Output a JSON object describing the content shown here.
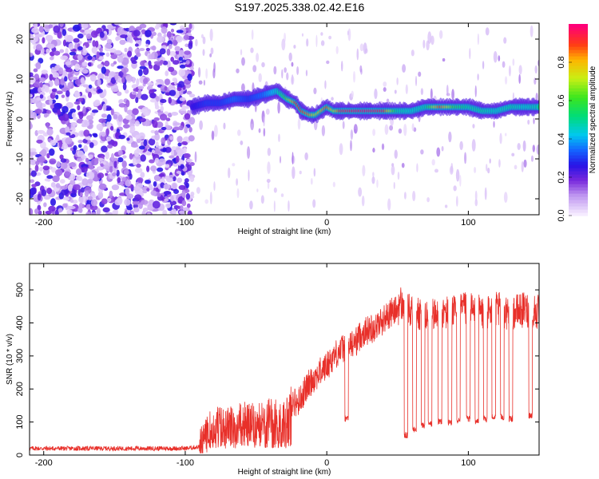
{
  "title": "S197.2025.338.02.42.E16",
  "colors": {
    "snr_line": "#e8302a",
    "axis": "#000000",
    "background": "#ffffff"
  },
  "chart_data": [
    {
      "type": "heatmap",
      "title": "S197.2025.338.02.42.E16",
      "xlabel": "Height of straight line (km)",
      "ylabel": "Frequency (Hz)",
      "xlim": [
        -210,
        150
      ],
      "ylim": [
        -24,
        24
      ],
      "xticks": [
        -200,
        -100,
        0,
        100
      ],
      "xtick_labels": [
        "-200",
        "-100",
        "0",
        "100"
      ],
      "yticks": [
        20,
        10,
        0,
        -10,
        -20
      ],
      "ytick_labels": [
        "20",
        "10",
        "0",
        "-10",
        "-20"
      ],
      "colorbar": {
        "label": "Normalized spectral amplitude",
        "range": [
          0,
          1
        ],
        "ticks": [
          0,
          0.2,
          0.4,
          0.6,
          0.8
        ],
        "tick_labels": [
          "0.0",
          "0.2",
          "0.4",
          "0.6",
          "0.8"
        ]
      },
      "noise_region": {
        "x_from": -210,
        "x_to": -95
      },
      "ridge": {
        "x": [
          -95,
          -85,
          -75,
          -65,
          -55,
          -45,
          -35,
          -28,
          -22,
          -18,
          -12,
          -8,
          -4,
          0,
          5,
          10,
          20,
          30,
          40,
          50,
          60,
          70,
          80,
          90,
          100,
          110,
          120,
          130,
          140,
          150
        ],
        "freq": [
          3,
          4,
          4,
          5,
          5,
          6,
          7,
          5,
          4,
          2,
          1,
          1,
          2,
          3,
          2,
          2,
          2,
          2,
          2,
          2,
          2,
          3,
          3,
          3,
          3,
          2,
          2,
          3,
          3,
          3
        ],
        "amp": [
          0.25,
          0.3,
          0.3,
          0.35,
          0.3,
          0.35,
          0.45,
          0.65,
          0.9,
          0.9,
          0.85,
          0.7,
          0.8,
          0.9,
          0.7,
          0.95,
          0.98,
          0.98,
          0.95,
          0.5,
          0.45,
          0.5,
          0.9,
          0.6,
          0.5,
          0.5,
          0.45,
          0.5,
          0.45,
          0.5
        ]
      }
    },
    {
      "type": "line",
      "xlabel": "Height of straight line (km)",
      "ylabel": "SNR (10 * v/v)",
      "xlim": [
        -210,
        150
      ],
      "ylim": [
        0,
        580
      ],
      "xticks": [
        -200,
        -100,
        0,
        100
      ],
      "xtick_labels": [
        "-200",
        "-100",
        "0",
        "100"
      ],
      "yticks": [
        0,
        100,
        200,
        300,
        400,
        500
      ],
      "ytick_labels": [
        "0",
        "100",
        "200",
        "300",
        "400",
        "500"
      ],
      "series": [
        {
          "name": "SNR",
          "x": [
            -210,
            -180,
            -150,
            -120,
            -100,
            -90,
            -85,
            -80,
            -70,
            -60,
            -50,
            -40,
            -30,
            -25,
            -20,
            -15,
            -10,
            -5,
            0,
            5,
            10,
            15,
            20,
            25,
            30,
            35,
            40,
            45,
            50,
            52,
            55,
            60,
            70,
            80,
            90,
            100,
            110,
            120,
            130,
            140,
            150
          ],
          "values": [
            20,
            20,
            20,
            20,
            20,
            25,
            60,
            100,
            90,
            110,
            100,
            120,
            110,
            160,
            160,
            200,
            230,
            250,
            270,
            300,
            320,
            330,
            340,
            370,
            380,
            390,
            410,
            430,
            440,
            460,
            440,
            430,
            420,
            430,
            430,
            440,
            430,
            440,
            430,
            440,
            430
          ],
          "dropouts": [
            {
              "x": 14,
              "value": 100
            },
            {
              "x": 56,
              "value": 50
            },
            {
              "x": 62,
              "value": 70
            },
            {
              "x": 68,
              "value": 80
            },
            {
              "x": 73,
              "value": 85
            },
            {
              "x": 80,
              "value": 90
            },
            {
              "x": 87,
              "value": 90
            },
            {
              "x": 93,
              "value": 95
            },
            {
              "x": 100,
              "value": 100
            },
            {
              "x": 106,
              "value": 95
            },
            {
              "x": 112,
              "value": 100
            },
            {
              "x": 118,
              "value": 105
            },
            {
              "x": 124,
              "value": 105
            },
            {
              "x": 130,
              "value": 100
            },
            {
              "x": 144,
              "value": 110
            }
          ]
        }
      ]
    }
  ]
}
